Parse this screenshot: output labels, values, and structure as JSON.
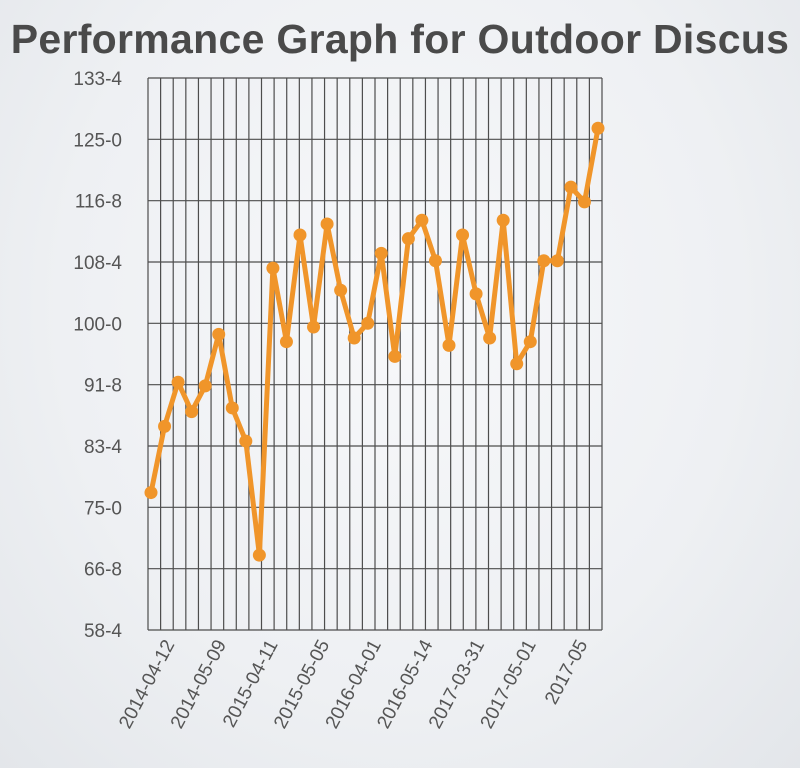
{
  "chart_data": {
    "type": "line",
    "title": "Performance Graph for Outdoor Discus",
    "xlabel": "",
    "ylabel": "",
    "y_tick_labels": [
      "58-4",
      "66-8",
      "75-0",
      "83-4",
      "91-8",
      "100-0",
      "108-4",
      "116-8",
      "125-0",
      "133-4"
    ],
    "ylim": [
      58.33,
      133.33
    ],
    "x_tick_labels": [
      "2014-04-12",
      "2014-05-09",
      "2015-04-11",
      "2015-05-05",
      "2016-04-01",
      "2016-05-14",
      "2017-03-31",
      "2017-05-01",
      "2017-05"
    ],
    "grid": true,
    "line_color": "#f0952a",
    "series": [
      {
        "values": [
          77.0,
          86.0,
          92.0,
          88.0,
          91.5,
          98.5,
          88.5,
          84.0,
          68.5,
          107.5,
          97.5,
          112.0,
          99.5,
          113.5,
          104.5,
          98.0,
          100.0,
          109.5,
          95.5,
          111.5,
          114.0,
          108.5,
          97.0,
          112.0,
          104.0,
          98.0,
          114.0,
          94.5,
          97.5,
          108.5,
          108.5,
          118.5,
          116.5,
          126.5
        ]
      }
    ]
  }
}
